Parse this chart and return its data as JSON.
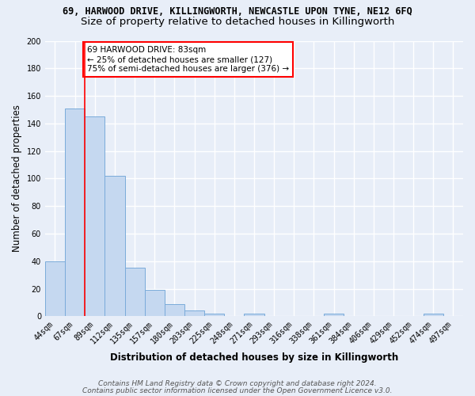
{
  "title_line1": "69, HARWOOD DRIVE, KILLINGWORTH, NEWCASTLE UPON TYNE, NE12 6FQ",
  "title_line2": "Size of property relative to detached houses in Killingworth",
  "xlabel": "Distribution of detached houses by size in Killingworth",
  "ylabel": "Number of detached properties",
  "categories": [
    "44sqm",
    "67sqm",
    "89sqm",
    "112sqm",
    "135sqm",
    "157sqm",
    "180sqm",
    "203sqm",
    "225sqm",
    "248sqm",
    "271sqm",
    "293sqm",
    "316sqm",
    "338sqm",
    "361sqm",
    "384sqm",
    "406sqm",
    "429sqm",
    "452sqm",
    "474sqm",
    "497sqm"
  ],
  "values": [
    40,
    151,
    145,
    102,
    35,
    19,
    9,
    4,
    2,
    0,
    2,
    0,
    0,
    0,
    2,
    0,
    0,
    0,
    0,
    2,
    0
  ],
  "bar_color": "#c5d8f0",
  "bar_edge_color": "#7aabda",
  "red_line_x": 1.5,
  "annotation_text": "69 HARWOOD DRIVE: 83sqm\n← 25% of detached houses are smaller (127)\n75% of semi-detached houses are larger (376) →",
  "annotation_box_color": "white",
  "annotation_box_edge": "red",
  "ylim": [
    0,
    200
  ],
  "yticks": [
    0,
    20,
    40,
    60,
    80,
    100,
    120,
    140,
    160,
    180,
    200
  ],
  "footer_line1": "Contains HM Land Registry data © Crown copyright and database right 2024.",
  "footer_line2": "Contains public sector information licensed under the Open Government Licence v3.0.",
  "background_color": "#e8eef8",
  "grid_color": "white",
  "title_fontsize": 8.5,
  "subtitle_fontsize": 9.5,
  "axis_label_fontsize": 8.5,
  "tick_fontsize": 7,
  "footer_fontsize": 6.5,
  "annotation_fontsize": 7.5
}
